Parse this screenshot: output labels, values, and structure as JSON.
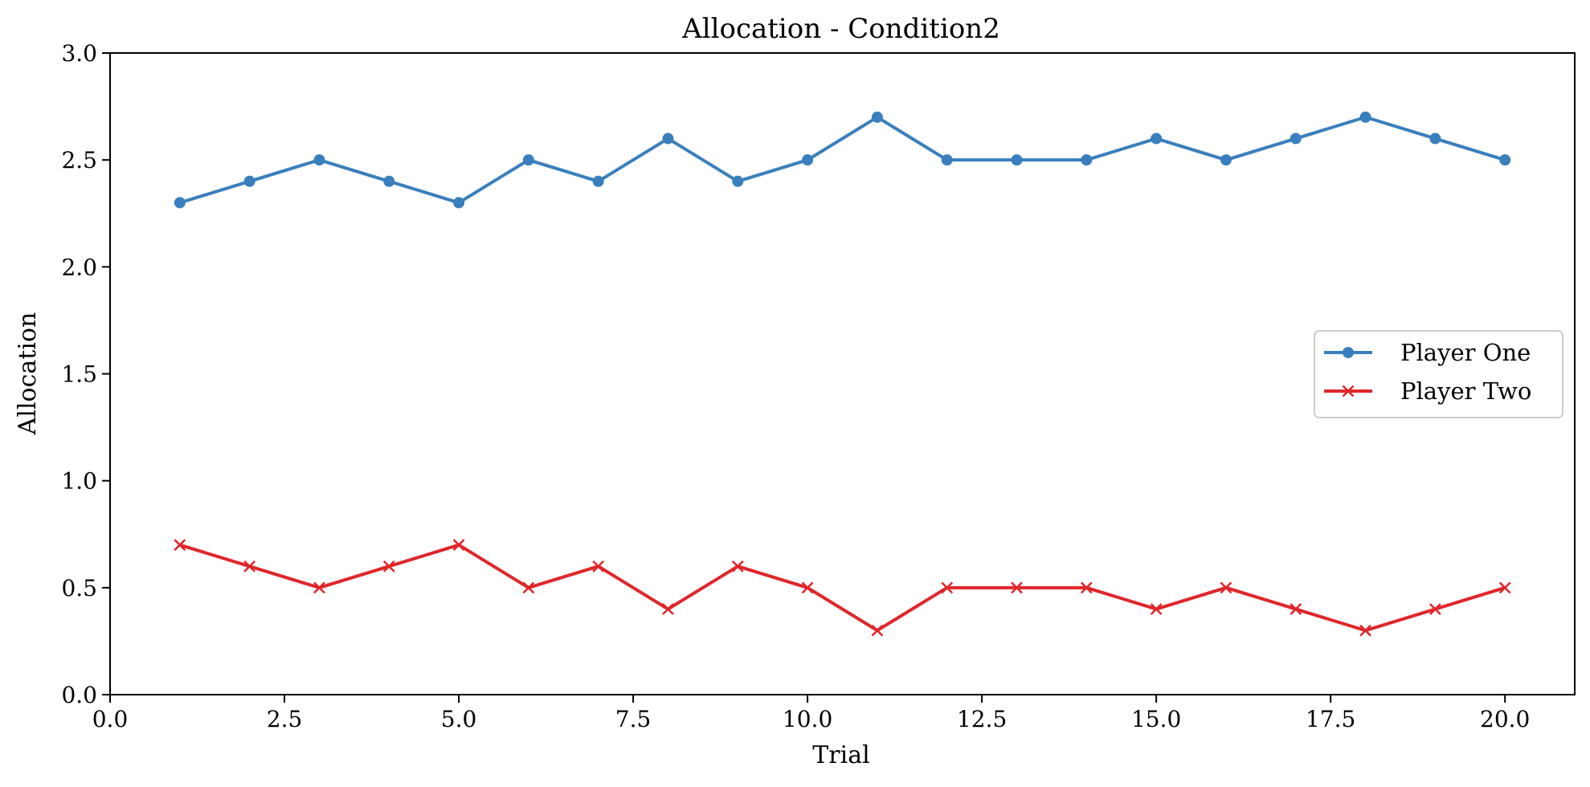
{
  "chart_data": {
    "type": "line",
    "title": "Allocation - Condition2",
    "xlabel": "Trial",
    "ylabel": "Allocation",
    "xlim": [
      0,
      21
    ],
    "ylim": [
      0,
      3
    ],
    "xticks": [
      0,
      2.5,
      5,
      7.5,
      10,
      12.5,
      15,
      17.5,
      20
    ],
    "xtick_labels": [
      "0.0",
      "2.5",
      "5.0",
      "7.5",
      "10.0",
      "12.5",
      "15.0",
      "17.5",
      "20.0"
    ],
    "yticks": [
      0,
      0.5,
      1,
      1.5,
      2,
      2.5,
      3
    ],
    "ytick_labels": [
      "0.0",
      "0.5",
      "1.0",
      "1.5",
      "2.0",
      "2.5",
      "3.0"
    ],
    "grid": false,
    "legend_position": "center-right",
    "x": [
      1,
      2,
      3,
      4,
      5,
      6,
      7,
      8,
      9,
      10,
      11,
      12,
      13,
      14,
      15,
      16,
      17,
      18,
      19,
      20
    ],
    "series": [
      {
        "name": "Player One",
        "color": "#3a7fbd",
        "marker": "circle",
        "values": [
          2.3,
          2.4,
          2.5,
          2.4,
          2.3,
          2.5,
          2.4,
          2.6,
          2.4,
          2.5,
          2.7,
          2.5,
          2.5,
          2.5,
          2.6,
          2.5,
          2.6,
          2.7,
          2.6,
          2.5
        ]
      },
      {
        "name": "Player Two",
        "color": "#e0262a",
        "marker": "x",
        "values": [
          0.7,
          0.6,
          0.5,
          0.6,
          0.7,
          0.5,
          0.6,
          0.4,
          0.6,
          0.5,
          0.3,
          0.5,
          0.5,
          0.5,
          0.4,
          0.5,
          0.4,
          0.3,
          0.4,
          0.5
        ]
      }
    ]
  }
}
